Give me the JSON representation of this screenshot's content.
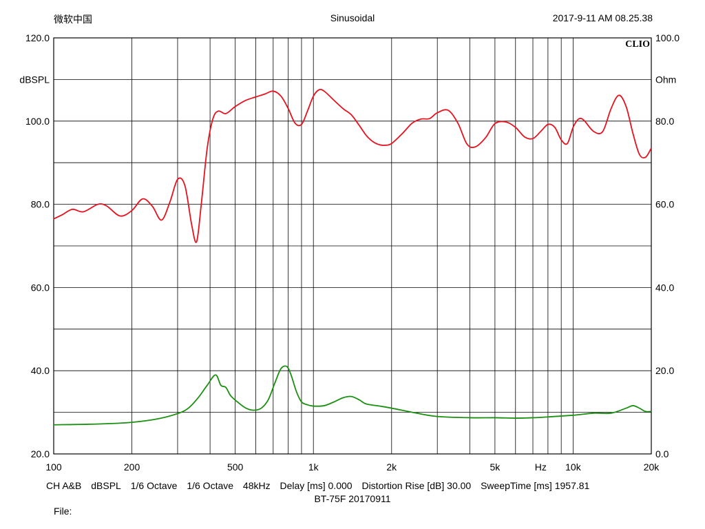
{
  "header": {
    "left": "微软中国",
    "center": "Sinusoidal",
    "right": "2017-9-11 AM 08.25.38"
  },
  "brand": "CLIO",
  "chart_data": {
    "type": "line",
    "xscale": "log",
    "xlim": [
      100,
      20000
    ],
    "ylim": [
      20,
      120
    ],
    "y2lim": [
      0,
      100
    ],
    "ylabel": "dBSPL",
    "y2label": "Ohm",
    "xunit": "Hz",
    "grid": true,
    "x_ticks": [
      {
        "v": 100,
        "label": "100"
      },
      {
        "v": 200,
        "label": "200"
      },
      {
        "v": 500,
        "label": "500"
      },
      {
        "v": 1000,
        "label": "1k"
      },
      {
        "v": 2000,
        "label": "2k"
      },
      {
        "v": 5000,
        "label": "5k"
      },
      {
        "v": 10000,
        "label": "10k"
      },
      {
        "v": 20000,
        "label": "20k"
      }
    ],
    "y_ticks": [
      {
        "v": 120,
        "label": "120.0"
      },
      {
        "v": 100,
        "label": "100.0"
      },
      {
        "v": 80,
        "label": "80.0"
      },
      {
        "v": 60,
        "label": "60.0"
      },
      {
        "v": 40,
        "label": "40.0"
      },
      {
        "v": 20,
        "label": "20.0"
      }
    ],
    "y2_ticks": [
      {
        "v": 100,
        "label": "100.0"
      },
      {
        "v": 80,
        "label": "80.0"
      },
      {
        "v": 60,
        "label": "60.0"
      },
      {
        "v": 40,
        "label": "40.0"
      },
      {
        "v": 20,
        "label": "20.0"
      },
      {
        "v": 0,
        "label": "0.0"
      }
    ],
    "series": [
      {
        "color": "#e8101c",
        "x": [
          100,
          108,
          118,
          130,
          148,
          160,
          180,
          200,
          220,
          240,
          260,
          280,
          300,
          320,
          340,
          355,
          370,
          390,
          410,
          430,
          460,
          500,
          550,
          600,
          650,
          700,
          750,
          800,
          850,
          900,
          950,
          1000,
          1050,
          1100,
          1200,
          1300,
          1400,
          1500,
          1600,
          1700,
          1800,
          1900,
          2000,
          2200,
          2400,
          2600,
          2800,
          3000,
          3300,
          3600,
          3900,
          4200,
          4600,
          5000,
          5500,
          6000,
          6500,
          7000,
          7500,
          8000,
          8500,
          9000,
          9500,
          10000,
          10500,
          11000,
          12000,
          13000,
          14000,
          15000,
          16000,
          17000,
          18000,
          19000,
          20000
        ],
        "y": [
          76.5,
          77.5,
          78.8,
          78.2,
          80.0,
          79.6,
          77.2,
          78.5,
          81.3,
          79.5,
          76.2,
          80.5,
          86.0,
          84.5,
          75.0,
          71.0,
          80.0,
          93.5,
          100.5,
          102.4,
          101.8,
          103.5,
          105.0,
          105.8,
          106.5,
          107.2,
          106.0,
          103.0,
          99.5,
          99.2,
          102.5,
          106.0,
          107.5,
          107.2,
          105.0,
          103.0,
          101.5,
          99.0,
          96.5,
          95.0,
          94.3,
          94.2,
          94.6,
          97.0,
          99.5,
          100.5,
          100.6,
          102.0,
          102.6,
          99.5,
          94.5,
          93.8,
          96.0,
          99.4,
          99.8,
          98.5,
          96.2,
          95.8,
          97.5,
          99.2,
          98.5,
          95.5,
          94.6,
          98.5,
          100.5,
          100.2,
          97.5,
          97.5,
          103.0,
          106.2,
          103.5,
          97.0,
          92.0,
          91.3,
          93.5
        ]
      },
      {
        "color": "#1a8f10",
        "axis": "right",
        "x": [
          100,
          150,
          200,
          250,
          300,
          330,
          360,
          390,
          420,
          440,
          460,
          480,
          510,
          550,
          590,
          630,
          670,
          710,
          750,
          790,
          820,
          860,
          900,
          950,
          1000,
          1100,
          1200,
          1300,
          1400,
          1500,
          1600,
          1800,
          2000,
          2500,
          3000,
          4000,
          5000,
          6000,
          7000,
          8000,
          10000,
          12000,
          14000,
          16000,
          17000,
          18000,
          19000,
          20000
        ],
        "y": [
          7.0,
          7.2,
          7.6,
          8.4,
          9.7,
          11.0,
          13.5,
          16.5,
          19.0,
          16.5,
          16.0,
          14.0,
          12.5,
          11.0,
          10.5,
          11.0,
          13.0,
          17.0,
          20.5,
          21.0,
          19.0,
          15.0,
          12.5,
          11.8,
          11.5,
          11.6,
          12.5,
          13.5,
          13.8,
          13.0,
          12.0,
          11.5,
          11.0,
          9.8,
          9.0,
          8.7,
          8.7,
          8.6,
          8.7,
          8.9,
          9.3,
          9.8,
          9.8,
          11.0,
          11.6,
          11.0,
          10.2,
          10.2
        ]
      }
    ]
  },
  "info": {
    "channel": "CH A&B",
    "unit": "dBSPL",
    "smoothing1": "1/6 Octave",
    "smoothing2": "1/6 Octave",
    "rate": "48kHz",
    "delay": "Delay [ms] 0.000",
    "distortion": "Distortion Rise [dB] 30.00",
    "sweep": "SweepTime [ms] 1957.81",
    "title": "BT-75F 20170911",
    "file": "File:"
  }
}
